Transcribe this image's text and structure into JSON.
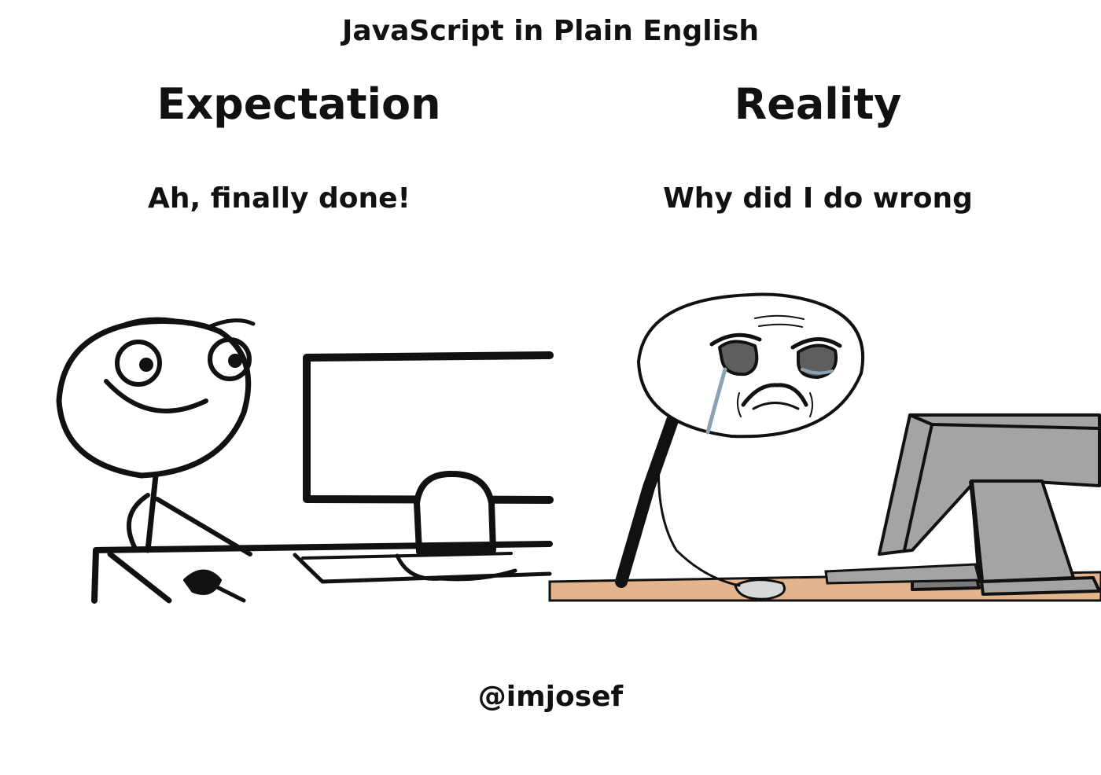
{
  "header": {
    "title": "JavaScript in Plain English"
  },
  "panels": {
    "expectation": {
      "title": "Expectation",
      "caption": "Ah, finally done!"
    },
    "reality": {
      "title": "Reality",
      "caption": "Why did I do wrong"
    }
  },
  "footer": {
    "handle": "@imjosef"
  },
  "colors": {
    "ink": "#111111",
    "desk_reality": "#e2b58d",
    "monitor_gray": "#a4a4a4",
    "monitor_dark": "#7a7a7a",
    "tear": "#8aa3b2"
  }
}
